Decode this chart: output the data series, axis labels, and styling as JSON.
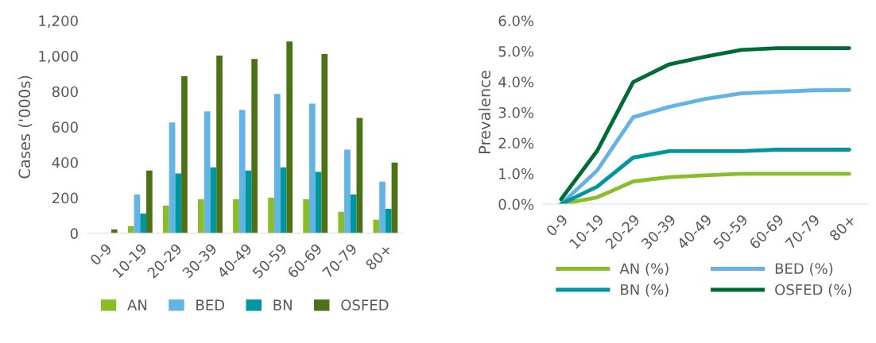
{
  "chart_data": [
    {
      "type": "bar",
      "ylabel": "Cases ('000s)",
      "categories": [
        "0-9",
        "10-19",
        "20-29",
        "30-39",
        "40-49",
        "50-59",
        "60-69",
        "70-79",
        "80+"
      ],
      "ylim": [
        0,
        1200
      ],
      "yticks": [
        0,
        {
          "value": 200,
          "label": "200"
        },
        400,
        600,
        800,
        {
          "value": 1000,
          "label": "1,000"
        },
        {
          "value": 1200,
          "label": "1,200"
        }
      ],
      "grid": false,
      "legend": "bottom",
      "series": [
        {
          "name": "AN",
          "color": "#8abd2a",
          "values": [
            0,
            40,
            156,
            192,
            192,
            201,
            192,
            121,
            76
          ]
        },
        {
          "name": "BED",
          "color": "#63b4e4",
          "values": [
            0,
            219,
            625,
            688,
            696,
            786,
            731,
            472,
            291
          ]
        },
        {
          "name": "BN",
          "color": "#0096a0",
          "values": [
            0,
            111,
            337,
            372,
            354,
            372,
            346,
            219,
            138
          ]
        },
        {
          "name": "OSFED",
          "color": "#4e7117",
          "values": [
            21,
            354,
            886,
            1002,
            984,
            1082,
            1011,
            651,
            399
          ]
        }
      ]
    },
    {
      "type": "line",
      "ylabel": "Prevalence",
      "categories": [
        "0-9",
        "10-19",
        "20-29",
        "30-39",
        "40-49",
        "50-59",
        "60-69",
        "70-79",
        "80+"
      ],
      "ylim": [
        0,
        6
      ],
      "yticks": [
        {
          "value": 0,
          "label": "0.0%"
        },
        {
          "value": 1,
          "label": "1.0%"
        },
        {
          "value": 2,
          "label": "2.0%"
        },
        {
          "value": 3,
          "label": "3.0%"
        },
        {
          "value": 4,
          "label": "4.0%"
        },
        {
          "value": 5,
          "label": "5.0%"
        },
        {
          "value": 6,
          "label": "6.0%"
        }
      ],
      "grid": false,
      "legend": "bottom",
      "marker": "none",
      "line_style": "solid",
      "series": [
        {
          "name": "AN (%)",
          "color": "#8abd2a",
          "values": [
            0,
            0.22,
            0.74,
            0.88,
            0.94,
            0.99,
            0.99,
            0.99,
            0.99
          ]
        },
        {
          "name": "BED (%)",
          "color": "#63b4e4",
          "values": [
            0,
            1.1,
            2.84,
            3.18,
            3.44,
            3.62,
            3.67,
            3.72,
            3.73
          ]
        },
        {
          "name": "BN (%)",
          "color": "#0096a0",
          "values": [
            0,
            0.57,
            1.52,
            1.73,
            1.73,
            1.73,
            1.78,
            1.78,
            1.78
          ]
        },
        {
          "name": "OSFED (%)",
          "color": "#006b35",
          "values": [
            0.16,
            1.74,
            3.99,
            4.57,
            4.82,
            5.04,
            5.1,
            5.1,
            5.1
          ]
        }
      ]
    }
  ]
}
